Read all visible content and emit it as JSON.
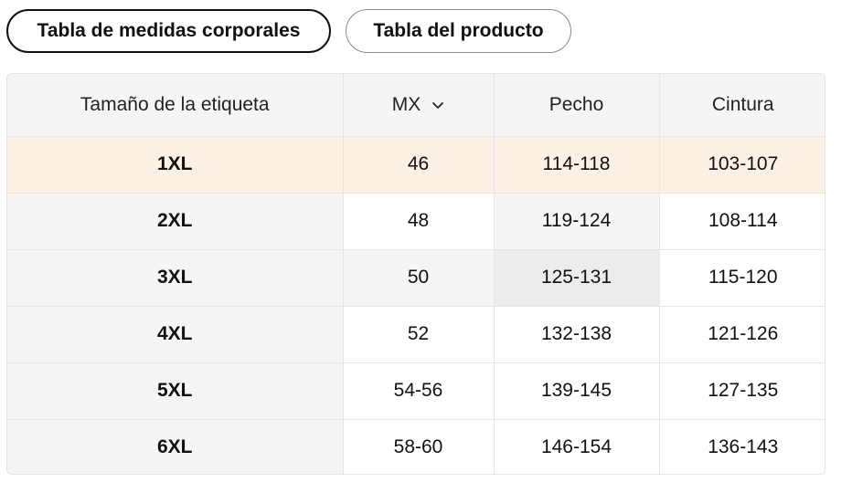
{
  "tabs": [
    {
      "label": "Tabla de medidas corporales",
      "active": true
    },
    {
      "label": "Tabla del producto",
      "active": false
    }
  ],
  "table": {
    "headers": {
      "size": "Tamaño de la etiqueta",
      "region": "MX",
      "chest": "Pecho",
      "waist": "Cintura"
    },
    "rows": [
      {
        "size": "1XL",
        "mx": "46",
        "chest": "114-118",
        "waist": "103-107"
      },
      {
        "size": "2XL",
        "mx": "48",
        "chest": "119-124",
        "waist": "108-114"
      },
      {
        "size": "3XL",
        "mx": "50",
        "chest": "125-131",
        "waist": "115-120"
      },
      {
        "size": "4XL",
        "mx": "52",
        "chest": "132-138",
        "waist": "121-126"
      },
      {
        "size": "5XL",
        "mx": "54-56",
        "chest": "139-145",
        "waist": "127-135"
      },
      {
        "size": "6XL",
        "mx": "58-60",
        "chest": "146-154",
        "waist": "136-143"
      }
    ]
  },
  "colors": {
    "highlight_row": "#fdf0e4",
    "header_bg": "#f5f5f5",
    "hover_cell": "#ececec"
  },
  "icons": {
    "region_dropdown": "chevron-down-icon"
  }
}
